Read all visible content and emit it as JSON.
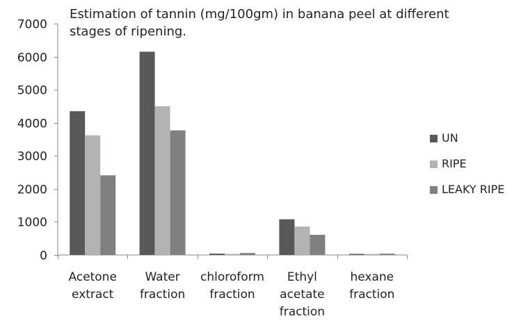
{
  "chart_data": {
    "type": "bar",
    "title": "Estimation of tannin (mg/100gm) in banana peel at different stages of ripening.",
    "title_lines": [
      "Estimation of tannin (mg/100gm) in banana peel at different",
      "stages of ripening."
    ],
    "categories": [
      "Acetone extract",
      "Water fraction",
      "chloroform fraction",
      "Ethyl acetate fraction",
      "hexane fraction"
    ],
    "category_lines": [
      [
        "Acetone",
        "extract"
      ],
      [
        "Water",
        "fraction"
      ],
      [
        "chloroform",
        "fraction"
      ],
      [
        "Ethyl",
        "acetate",
        "fraction"
      ],
      [
        "hexane",
        "fraction"
      ]
    ],
    "series": [
      {
        "name": "UN",
        "color": "#595959",
        "values": [
          4350,
          6150,
          40,
          1080,
          20
        ]
      },
      {
        "name": "RIPE",
        "color": "#b3b3b3",
        "values": [
          3620,
          4500,
          20,
          860,
          10
        ]
      },
      {
        "name": "LEAKY RIPE",
        "color": "#808080",
        "values": [
          2410,
          3770,
          60,
          610,
          40
        ]
      }
    ],
    "ylim": [
      0,
      7000
    ],
    "yticks": [
      0,
      1000,
      2000,
      3000,
      4000,
      5000,
      6000,
      7000
    ],
    "xlabel": "",
    "ylabel": "",
    "grid": false,
    "legend_position": "right"
  }
}
